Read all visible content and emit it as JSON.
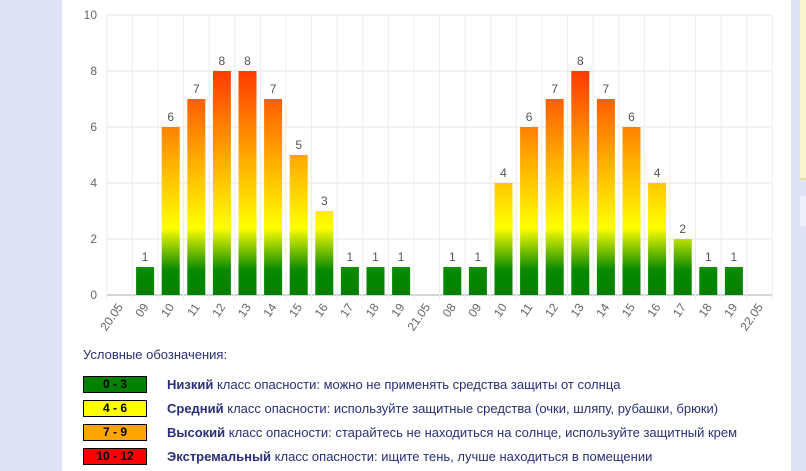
{
  "chart_data": {
    "type": "bar",
    "categories": [
      "20.05",
      "09",
      "10",
      "11",
      "12",
      "13",
      "14",
      "15",
      "16",
      "17",
      "18",
      "19",
      "21.05",
      "08",
      "09",
      "10",
      "11",
      "12",
      "13",
      "14",
      "15",
      "16",
      "17",
      "18",
      "19",
      "22.05"
    ],
    "values": [
      null,
      1,
      6,
      7,
      8,
      8,
      7,
      5,
      3,
      1,
      1,
      1,
      null,
      1,
      1,
      4,
      6,
      7,
      8,
      7,
      6,
      4,
      2,
      1,
      1,
      null
    ],
    "ylim": [
      0,
      10
    ],
    "yticks": [
      0,
      2,
      4,
      6,
      8,
      10
    ],
    "grid": true,
    "title": "",
    "xlabel": "",
    "ylabel": "",
    "gradient_colors": [
      "#008000",
      "#ffff00",
      "#ffa500",
      "#ff0000"
    ]
  },
  "legend": {
    "title": "Условные обозначения:",
    "items": [
      {
        "range": "0 - 3",
        "color": "#008000",
        "name": "Низкий",
        "text": " класс опасности: можно не применять средства защиты от солнца"
      },
      {
        "range": "4 - 6",
        "color": "#ffff00",
        "name": "Средний",
        "text": " класс опасности: используйте защитные средства (очки, шляпу, рубашки, брюки)"
      },
      {
        "range": "7 - 9",
        "color": "#ffa500",
        "name": "Высокий",
        "text": " класс опасности: старайтесь не находиться на солнце, используйте защитный крем"
      },
      {
        "range": "10 - 12",
        "color": "#ff0000",
        "name": "Экстремальный",
        "text": " класс опасности: ищите тень, лучше находиться в помещении"
      }
    ]
  }
}
